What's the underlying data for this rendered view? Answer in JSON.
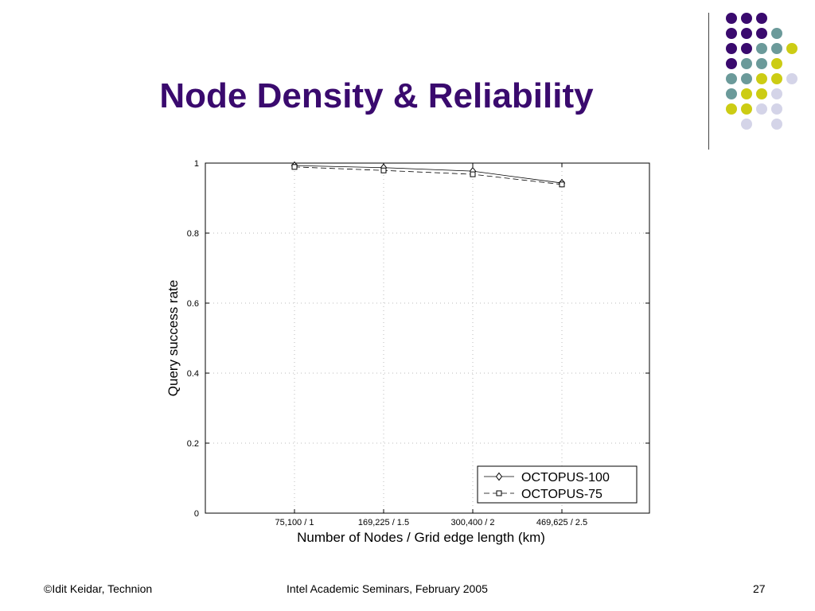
{
  "slide": {
    "title": "Node Density & Reliability",
    "footer_left": "©Idit Keidar, Technion",
    "footer_center": "Intel Academic Seminars, February 2005",
    "page_number": "27"
  },
  "colors": {
    "title": "#3a0a6e",
    "dot_purple": "#3a0a6e",
    "dot_teal": "#6b9a9a",
    "dot_yellow": "#cccc14",
    "dot_lavender": "#d4d4e8"
  },
  "chart_data": {
    "type": "line",
    "title": "",
    "xlabel": "Number of Nodes / Grid edge length (km)",
    "ylabel": "Query success rate",
    "categories": [
      "75,100 / 1",
      "169,225 / 1.5",
      "300,400 / 2",
      "469,625 / 2.5"
    ],
    "ylim": [
      0,
      1
    ],
    "yticks": [
      "0",
      "0.2",
      "0.4",
      "0.6",
      "0.8",
      "1"
    ],
    "grid": true,
    "legend_position": "bottom-right",
    "series": [
      {
        "name": "OCTOPUS-100",
        "values": [
          0.993,
          0.987,
          0.977,
          0.943
        ],
        "marker": "diamond",
        "line": "solid"
      },
      {
        "name": "OCTOPUS-75",
        "values": [
          0.989,
          0.979,
          0.968,
          0.939
        ],
        "marker": "square",
        "line": "dashed"
      }
    ]
  }
}
